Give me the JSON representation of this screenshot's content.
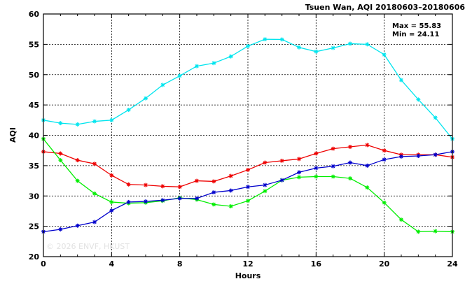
{
  "chart_data": {
    "type": "line",
    "title": "Tsuen Wan, AQI 20180603–20180606",
    "xlabel": "Hours",
    "ylabel": "AQI",
    "xlim": [
      0,
      24
    ],
    "ylim": [
      20,
      60
    ],
    "xticks": [
      0,
      4,
      8,
      12,
      16,
      20,
      24
    ],
    "yticks": [
      20,
      25,
      30,
      35,
      40,
      45,
      50,
      55,
      60
    ],
    "grid": true,
    "annotation": {
      "max_text": "Max = 55.83",
      "min_text": "Min = 24.11"
    },
    "watermark": "© 2026  ENVF, HKUST",
    "x": [
      0,
      1,
      2,
      3,
      4,
      5,
      6,
      7,
      8,
      9,
      10,
      11,
      12,
      13,
      14,
      15,
      16,
      17,
      18,
      19,
      20,
      21,
      22,
      23,
      24
    ],
    "series": [
      {
        "color": "#00e5ee",
        "values": [
          42.5,
          42.0,
          41.8,
          42.3,
          42.5,
          44.2,
          46.1,
          48.3,
          49.8,
          51.4,
          51.9,
          53.0,
          54.7,
          55.83,
          55.8,
          54.5,
          53.8,
          54.4,
          55.1,
          55.0,
          53.3,
          49.1,
          45.9,
          42.9,
          39.4
        ]
      },
      {
        "color": "#ee0000",
        "values": [
          37.3,
          37.0,
          35.9,
          35.3,
          33.4,
          31.9,
          31.8,
          31.6,
          31.5,
          32.5,
          32.4,
          33.3,
          34.3,
          35.5,
          35.8,
          36.1,
          37.0,
          37.8,
          38.1,
          38.4,
          37.5,
          36.8,
          36.8,
          36.8,
          36.4
        ]
      },
      {
        "color": "#00ee00",
        "values": [
          39.4,
          35.9,
          32.5,
          30.4,
          29.0,
          28.8,
          28.9,
          29.2,
          29.7,
          29.4,
          28.6,
          28.3,
          29.2,
          30.8,
          32.6,
          33.1,
          33.2,
          33.2,
          32.9,
          31.4,
          28.9,
          26.1,
          24.11,
          24.2,
          24.1
        ]
      },
      {
        "color": "#0000cc",
        "values": [
          24.11,
          24.5,
          25.1,
          25.7,
          27.6,
          29.0,
          29.1,
          29.3,
          29.6,
          29.6,
          30.6,
          30.9,
          31.5,
          31.8,
          32.6,
          33.9,
          34.6,
          34.9,
          35.5,
          35.0,
          36.0,
          36.5,
          36.6,
          36.8,
          37.3
        ]
      }
    ]
  }
}
